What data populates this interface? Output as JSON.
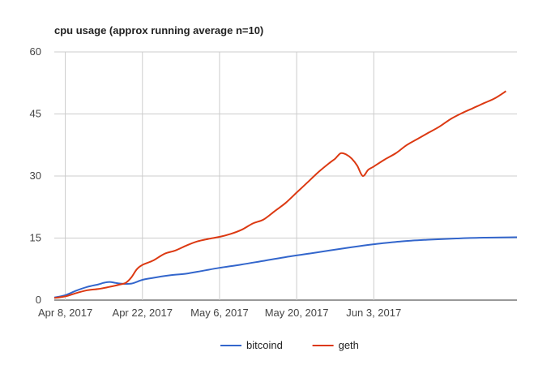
{
  "chart_data": {
    "type": "line",
    "title": "cpu usage (approx running average n=10)",
    "xlabel": "",
    "ylabel": "",
    "xlim": [
      "2017-04-06",
      "2017-06-29"
    ],
    "ylim": [
      0,
      60
    ],
    "yticks": [
      0,
      15,
      30,
      45,
      60
    ],
    "xticks": [
      {
        "date": "2017-04-08",
        "label": "Apr 8, 2017"
      },
      {
        "date": "2017-04-22",
        "label": "Apr 22, 2017"
      },
      {
        "date": "2017-05-06",
        "label": "May 6, 2017"
      },
      {
        "date": "2017-05-20",
        "label": "May 20, 2017"
      },
      {
        "date": "2017-06-03",
        "label": "Jun 3, 2017"
      }
    ],
    "grid": true,
    "legend_position": "bottom",
    "series": [
      {
        "name": "bitcoind",
        "color": "#3366cc",
        "points": [
          [
            "2017-04-06",
            0.6
          ],
          [
            "2017-04-08",
            1.2
          ],
          [
            "2017-04-10",
            2.3
          ],
          [
            "2017-04-12",
            3.2
          ],
          [
            "2017-04-14",
            3.8
          ],
          [
            "2017-04-15",
            4.2
          ],
          [
            "2017-04-16",
            4.4
          ],
          [
            "2017-04-17",
            4.2
          ],
          [
            "2017-04-18",
            4.0
          ],
          [
            "2017-04-20",
            4.0
          ],
          [
            "2017-04-22",
            4.9
          ],
          [
            "2017-04-24",
            5.4
          ],
          [
            "2017-04-27",
            6.0
          ],
          [
            "2017-04-30",
            6.4
          ],
          [
            "2017-05-03",
            7.1
          ],
          [
            "2017-05-06",
            7.8
          ],
          [
            "2017-05-10",
            8.6
          ],
          [
            "2017-05-14",
            9.5
          ],
          [
            "2017-05-18",
            10.4
          ],
          [
            "2017-05-22",
            11.2
          ],
          [
            "2017-05-26",
            12.0
          ],
          [
            "2017-05-30",
            12.8
          ],
          [
            "2017-06-03",
            13.5
          ],
          [
            "2017-06-08",
            14.2
          ],
          [
            "2017-06-13",
            14.6
          ],
          [
            "2017-06-18",
            14.9
          ],
          [
            "2017-06-23",
            15.1
          ],
          [
            "2017-06-29",
            15.2
          ]
        ]
      },
      {
        "name": "geth",
        "color": "#dc3912",
        "points": [
          [
            "2017-04-06",
            0.5
          ],
          [
            "2017-04-08",
            0.9
          ],
          [
            "2017-04-10",
            1.7
          ],
          [
            "2017-04-12",
            2.4
          ],
          [
            "2017-04-14",
            2.7
          ],
          [
            "2017-04-16",
            3.2
          ],
          [
            "2017-04-18",
            3.8
          ],
          [
            "2017-04-19",
            4.2
          ],
          [
            "2017-04-20",
            5.5
          ],
          [
            "2017-04-21",
            7.5
          ],
          [
            "2017-04-22",
            8.5
          ],
          [
            "2017-04-24",
            9.6
          ],
          [
            "2017-04-26",
            11.2
          ],
          [
            "2017-04-28",
            12.0
          ],
          [
            "2017-04-30",
            13.2
          ],
          [
            "2017-05-02",
            14.2
          ],
          [
            "2017-05-04",
            14.8
          ],
          [
            "2017-05-06",
            15.3
          ],
          [
            "2017-05-08",
            16.0
          ],
          [
            "2017-05-10",
            17.0
          ],
          [
            "2017-05-12",
            18.5
          ],
          [
            "2017-05-14",
            19.5
          ],
          [
            "2017-05-16",
            21.5
          ],
          [
            "2017-05-18",
            23.5
          ],
          [
            "2017-05-20",
            26.0
          ],
          [
            "2017-05-22",
            28.5
          ],
          [
            "2017-05-24",
            31.0
          ],
          [
            "2017-05-26",
            33.2
          ],
          [
            "2017-05-27",
            34.2
          ],
          [
            "2017-05-28",
            35.5
          ],
          [
            "2017-05-29",
            35.2
          ],
          [
            "2017-05-30",
            34.2
          ],
          [
            "2017-05-31",
            32.5
          ],
          [
            "2017-06-01",
            30.0
          ],
          [
            "2017-06-02",
            31.5
          ],
          [
            "2017-06-03",
            32.3
          ],
          [
            "2017-06-05",
            34.0
          ],
          [
            "2017-06-07",
            35.5
          ],
          [
            "2017-06-09",
            37.5
          ],
          [
            "2017-06-11",
            39.0
          ],
          [
            "2017-06-13",
            40.5
          ],
          [
            "2017-06-15",
            42.0
          ],
          [
            "2017-06-17",
            43.8
          ],
          [
            "2017-06-19",
            45.2
          ],
          [
            "2017-06-21",
            46.4
          ],
          [
            "2017-06-23",
            47.6
          ],
          [
            "2017-06-25",
            48.8
          ],
          [
            "2017-06-27",
            50.5
          ]
        ]
      }
    ]
  }
}
